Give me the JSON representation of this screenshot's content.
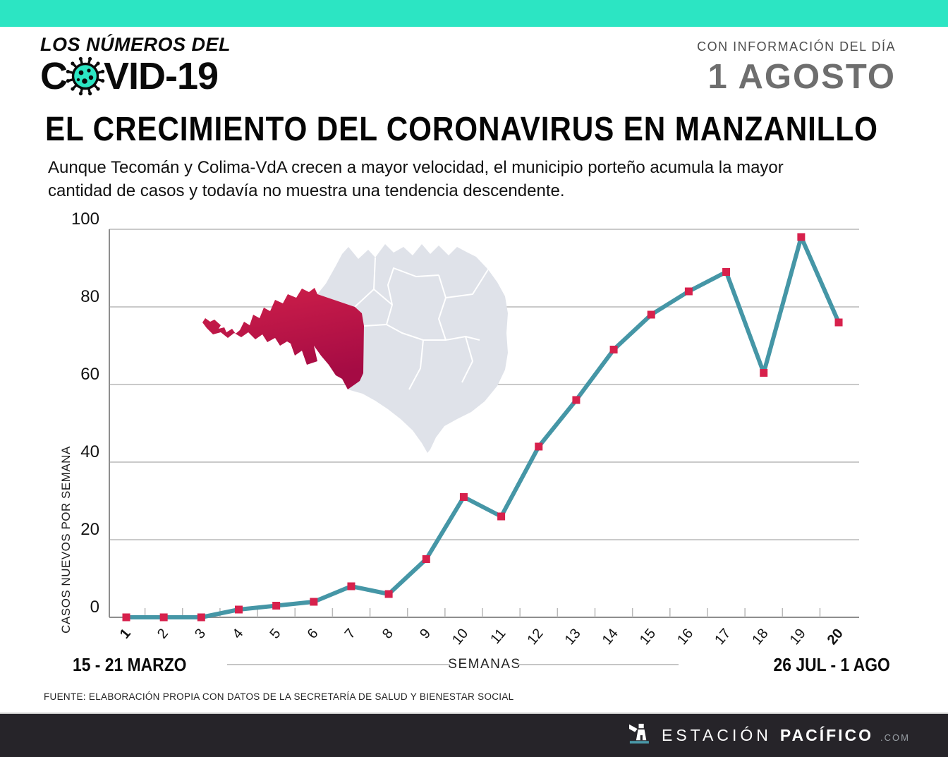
{
  "header": {
    "logo_line1": "LOS NÚMEROS DEL",
    "logo_line2_prefix": "C",
    "logo_line2_suffix": "VID-19",
    "info_label": "CON INFORMACIÓN DEL DÍA",
    "info_date": "1 AGOSTO"
  },
  "title": "EL CRECIMIENTO DEL CORONAVIRUS EN MANZANILLO",
  "subtitle_line1": "Aunque Tecomán y Colima-VdA crecen a mayor velocidad, el municipio porteño acumula la mayor",
  "subtitle_line2": "cantidad de casos y todavía no muestra una tendencia descendente.",
  "chart_data": {
    "type": "line",
    "x": [
      1,
      2,
      3,
      4,
      5,
      6,
      7,
      8,
      9,
      10,
      11,
      12,
      13,
      14,
      15,
      16,
      17,
      18,
      19,
      20
    ],
    "values": [
      0,
      0,
      0,
      2,
      3,
      4,
      8,
      6,
      15,
      31,
      26,
      44,
      56,
      69,
      78,
      84,
      89,
      63,
      98,
      76
    ],
    "title": "EL CRECIMIENTO DEL CORONAVIRUS EN MANZANILLO",
    "xlabel": "SEMANAS",
    "ylabel": "CASOS NUEVOS POR SEMANA",
    "ylim": [
      0,
      100
    ],
    "y_ticks": [
      0,
      20,
      40,
      60,
      80,
      100
    ],
    "grid": "horizontal",
    "legend": "none",
    "bold_x_labels": [
      1,
      20
    ],
    "x_range_start_label": "15 - 21 MARZO",
    "x_range_end_label": "26 JUL - 1 AGO",
    "line_color": "#4596a6",
    "marker_color": "#d7214c",
    "highlighted_region": "Manzanillo",
    "map_base_color": "#dfe2e9",
    "map_border_color": "#ffffff",
    "map_gradient_top": "#d0204a",
    "map_gradient_bottom": "#a50b44"
  },
  "source": "FUENTE: ELABORACIÓN PROPIA CON DATOS DE LA SECRETARÍA DE SALUD Y BIENESTAR SOCIAL",
  "footer": {
    "brand_light": "ESTACIÓN",
    "brand_bold": "PACÍFICO",
    "brand_suffix": ".COM"
  },
  "colors": {
    "accent_teal": "#2ce5c3",
    "date_gray": "#6e6e6e",
    "footer_bg": "#262429",
    "footer_accent": "#4a98a8",
    "gridline": "#b9b9b9",
    "axis": "#8e8e8e"
  }
}
